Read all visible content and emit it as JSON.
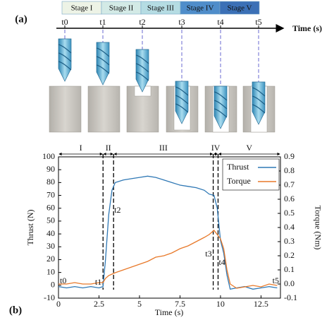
{
  "diagram": {
    "label": "(a)",
    "stages": [
      "Stage I",
      "Stage II",
      "Stage III",
      "Stage IV",
      "Stage V"
    ],
    "stage_colors": [
      "#edf3e6",
      "#d3eae6",
      "#b5dce3",
      "#4f8dca",
      "#3b70b6"
    ],
    "time_label": "Time (s)",
    "time_points": [
      "t0",
      "t1",
      "t2",
      "t3",
      "t4",
      "t5"
    ]
  },
  "chart_data": {
    "type": "line",
    "label": "(b)",
    "x_label": "Time (s)",
    "y_label": "Thrust (N)",
    "y2_label": "Torque (Nm)",
    "x": [
      0,
      0.5,
      1,
      1.5,
      2,
      2.5,
      2.75,
      2.9,
      3.1,
      3.3,
      3.5,
      4,
      4.5,
      5,
      5.5,
      6,
      6.5,
      7,
      7.5,
      8,
      8.5,
      9,
      9.3,
      9.6,
      9.8,
      10,
      10.2,
      10.4,
      10.6,
      11,
      11.5,
      12,
      12.5,
      13,
      13.5
    ],
    "series": [
      {
        "name": "Thrust",
        "color": "#2f78b5",
        "axis": "y",
        "values": [
          -1,
          -2,
          -1,
          -2,
          -1,
          -2,
          -1,
          20,
          55,
          74,
          80,
          82,
          83,
          84,
          85,
          84,
          82,
          80,
          78,
          77,
          76,
          74,
          71,
          70,
          60,
          35,
          25,
          8,
          -3,
          -2,
          -1,
          -3,
          -2,
          -1,
          -2
        ]
      },
      {
        "name": "Torque",
        "color": "#e8792a",
        "axis": "y2",
        "values": [
          0,
          0,
          0.01,
          0,
          0,
          0.01,
          0.01,
          0.04,
          0.06,
          0.07,
          0.08,
          0.1,
          0.12,
          0.14,
          0.16,
          0.19,
          0.2,
          0.22,
          0.25,
          0.27,
          0.3,
          0.33,
          0.35,
          0.38,
          0.35,
          0.32,
          0.25,
          0.1,
          0,
          -0.03,
          -0.02,
          -0.01,
          -0.02,
          0,
          -0.01
        ]
      }
    ],
    "stage_boundaries": [
      2.75,
      3.4,
      9.55,
      9.85
    ],
    "stage_labels": [
      "I",
      "II",
      "III",
      "IV",
      "V"
    ],
    "point_labels": [
      "t0",
      "t1",
      "t2",
      "t3",
      "t4",
      "t5"
    ],
    "xlim": [
      0,
      13.7
    ],
    "xticks": [
      0,
      2.5,
      5,
      7.5,
      10,
      12.5
    ],
    "ylim": [
      -10,
      100
    ],
    "yticks": [
      -10,
      0,
      10,
      20,
      30,
      40,
      50,
      60,
      70,
      80,
      90,
      100
    ],
    "y2lim": [
      -0.1,
      0.9
    ],
    "y2ticks": [
      -0.1,
      {
        "value": 0,
        "label": "0.0"
      },
      0.1,
      0.2,
      0.3,
      0.4,
      0.5,
      0.6,
      0.7,
      0.8,
      0.9
    ],
    "legend": "upper right"
  }
}
